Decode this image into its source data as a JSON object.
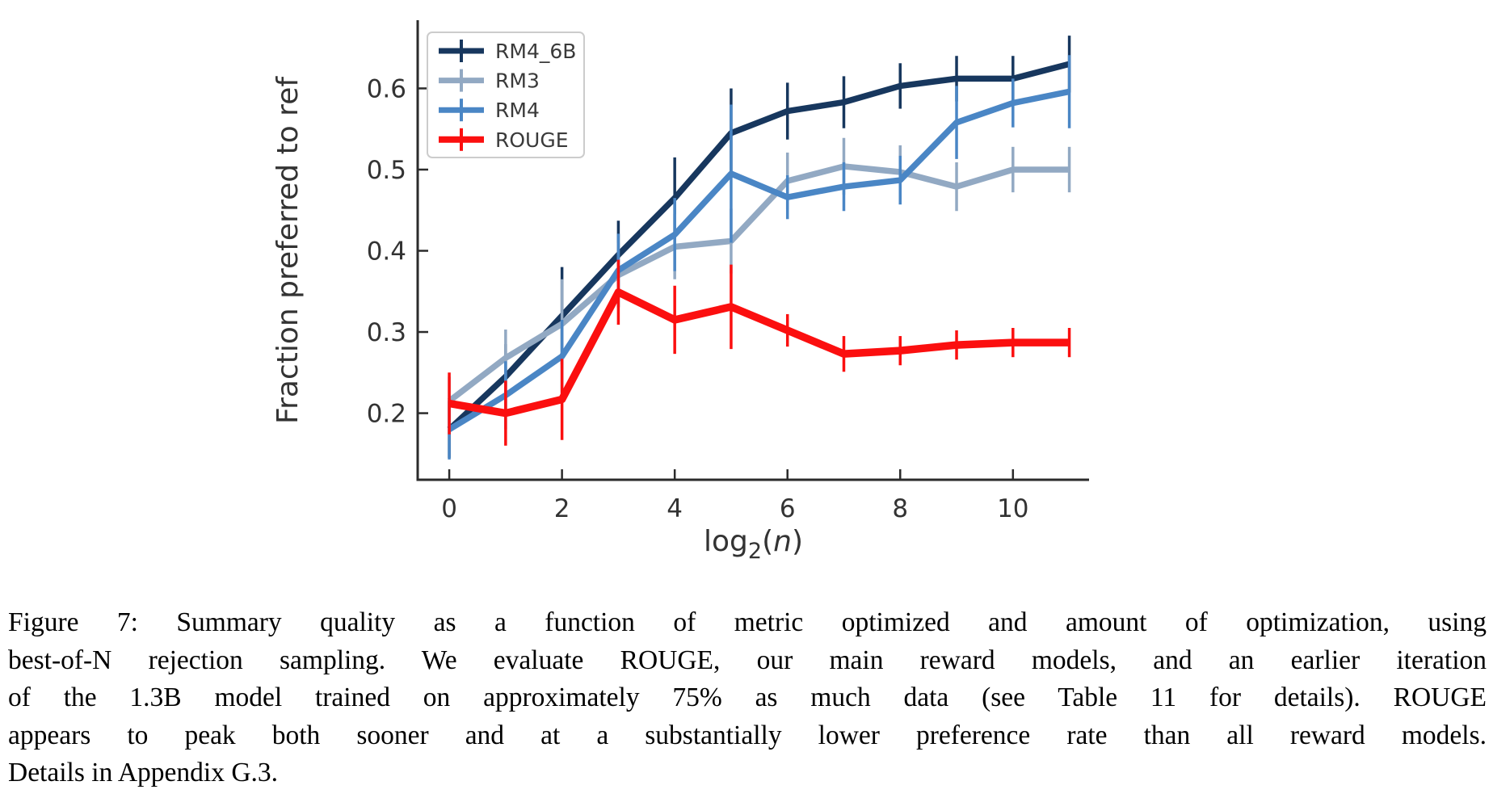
{
  "figure": {
    "caption_lines": [
      "Figure 7: Summary quality as a function of metric optimized and amount of optimization, using",
      "best-of-N rejection sampling. We evaluate ROUGE, our main reward models, and an earlier iteration",
      "of the 1.3B model trained on approximately 75% as much data (see Table 11 for details). ROUGE",
      "appears to peak both sooner and at a substantially lower preference rate than all reward models.",
      "Details in Appendix G.3."
    ]
  },
  "chart_data": {
    "type": "line",
    "title": "",
    "xlabel": "log_2(n)",
    "ylabel": "Fraction preferred to ref",
    "x": [
      0,
      1,
      2,
      3,
      4,
      5,
      6,
      7,
      8,
      9,
      10,
      11
    ],
    "xticks": [
      0,
      2,
      4,
      6,
      8,
      10
    ],
    "yticks": [
      0.2,
      0.3,
      0.4,
      0.5,
      0.6
    ],
    "xlim": [
      -0.56,
      11.35
    ],
    "ylim": [
      0.118,
      0.684
    ],
    "grid": false,
    "legend_position": "upper-left",
    "axis_color": "#2b2b2b",
    "tick_label_color": "#333333",
    "legend_text_color": "#3a3a3a",
    "legend_border_color": "#cccccc",
    "series": [
      {
        "name": "RM4_6B",
        "color": "#17375e",
        "values": [
          0.18,
          0.245,
          0.32,
          0.395,
          0.465,
          0.545,
          0.572,
          0.583,
          0.603,
          0.612,
          0.612,
          0.63
        ],
        "err": [
          0.035,
          0.04,
          0.06,
          0.042,
          0.05,
          0.055,
          0.035,
          0.032,
          0.028,
          0.028,
          0.028,
          0.035
        ]
      },
      {
        "name": "RM3",
        "color": "#92a9c3",
        "values": [
          0.215,
          0.268,
          0.31,
          0.37,
          0.405,
          0.412,
          0.486,
          0.504,
          0.497,
          0.479,
          0.5,
          0.5
        ],
        "err": [
          0.03,
          0.035,
          0.055,
          0.04,
          0.04,
          0.04,
          0.035,
          0.035,
          0.033,
          0.03,
          0.028,
          0.028
        ]
      },
      {
        "name": "RM4",
        "color": "#4a86c5",
        "values": [
          0.18,
          0.222,
          0.27,
          0.376,
          0.42,
          0.495,
          0.466,
          0.479,
          0.487,
          0.558,
          0.582,
          0.596
        ],
        "err": [
          0.037,
          0.042,
          0.045,
          0.045,
          0.045,
          0.085,
          0.027,
          0.03,
          0.03,
          0.045,
          0.03,
          0.045
        ]
      },
      {
        "name": "ROUGE",
        "color": "#fb0f0f",
        "values": [
          0.212,
          0.2,
          0.217,
          0.349,
          0.315,
          0.331,
          0.302,
          0.273,
          0.277,
          0.284,
          0.287,
          0.287
        ],
        "err": [
          0.038,
          0.04,
          0.05,
          0.04,
          0.042,
          0.052,
          0.02,
          0.022,
          0.018,
          0.018,
          0.018,
          0.018
        ]
      }
    ]
  }
}
